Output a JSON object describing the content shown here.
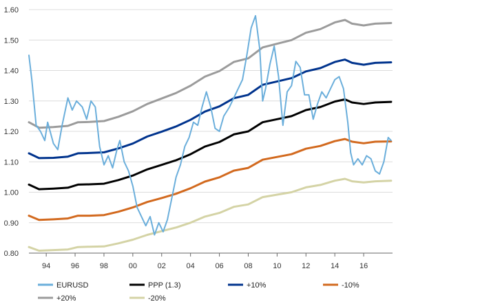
{
  "chart_data": {
    "type": "line",
    "title": "",
    "xlabel": "",
    "ylabel": "",
    "ylim": [
      0.8,
      1.6
    ],
    "yticks": [
      "1.60",
      "1.50",
      "1.40",
      "1.30",
      "1.20",
      "1.10",
      "1.00",
      "0.90",
      "0.80"
    ],
    "ytick_values": [
      1.6,
      1.5,
      1.4,
      1.3,
      1.2,
      1.1,
      1.0,
      0.9,
      0.8
    ],
    "xlim": [
      1992.8,
      2018.0
    ],
    "xticks": [
      "94",
      "96",
      "98",
      "00",
      "02",
      "04",
      "06",
      "08",
      "10",
      "12",
      "14",
      "16"
    ],
    "xtick_values": [
      1994,
      1996,
      1998,
      2000,
      2002,
      2004,
      2006,
      2008,
      2010,
      2012,
      2014,
      2016
    ],
    "grid": "horizontal",
    "legend_position": "bottom",
    "series": [
      {
        "name": "EURUSD",
        "color": "#6aaedb",
        "width": 2,
        "points": [
          [
            1992.8,
            1.45
          ],
          [
            1993.0,
            1.37
          ],
          [
            1993.3,
            1.22
          ],
          [
            1993.6,
            1.2
          ],
          [
            1993.9,
            1.17
          ],
          [
            1994.1,
            1.23
          ],
          [
            1994.5,
            1.16
          ],
          [
            1994.8,
            1.14
          ],
          [
            1995.1,
            1.22
          ],
          [
            1995.5,
            1.31
          ],
          [
            1995.8,
            1.27
          ],
          [
            1996.1,
            1.3
          ],
          [
            1996.5,
            1.28
          ],
          [
            1996.8,
            1.24
          ],
          [
            1997.1,
            1.3
          ],
          [
            1997.4,
            1.28
          ],
          [
            1997.7,
            1.15
          ],
          [
            1998.0,
            1.09
          ],
          [
            1998.3,
            1.12
          ],
          [
            1998.6,
            1.08
          ],
          [
            1998.9,
            1.14
          ],
          [
            1999.1,
            1.17
          ],
          [
            1999.4,
            1.1
          ],
          [
            1999.7,
            1.07
          ],
          [
            2000.0,
            1.02
          ],
          [
            2000.3,
            0.95
          ],
          [
            2000.6,
            0.92
          ],
          [
            2000.9,
            0.89
          ],
          [
            2001.2,
            0.92
          ],
          [
            2001.5,
            0.86
          ],
          [
            2001.8,
            0.9
          ],
          [
            2002.1,
            0.87
          ],
          [
            2002.4,
            0.91
          ],
          [
            2002.7,
            0.98
          ],
          [
            2003.0,
            1.05
          ],
          [
            2003.3,
            1.09
          ],
          [
            2003.6,
            1.15
          ],
          [
            2003.9,
            1.18
          ],
          [
            2004.2,
            1.23
          ],
          [
            2004.5,
            1.22
          ],
          [
            2004.8,
            1.28
          ],
          [
            2005.1,
            1.33
          ],
          [
            2005.4,
            1.28
          ],
          [
            2005.7,
            1.21
          ],
          [
            2006.0,
            1.2
          ],
          [
            2006.3,
            1.25
          ],
          [
            2006.7,
            1.28
          ],
          [
            2007.0,
            1.31
          ],
          [
            2007.3,
            1.34
          ],
          [
            2007.6,
            1.37
          ],
          [
            2007.9,
            1.45
          ],
          [
            2008.2,
            1.54
          ],
          [
            2008.5,
            1.58
          ],
          [
            2008.8,
            1.47
          ],
          [
            2009.0,
            1.3
          ],
          [
            2009.2,
            1.34
          ],
          [
            2009.5,
            1.42
          ],
          [
            2009.8,
            1.48
          ],
          [
            2010.1,
            1.38
          ],
          [
            2010.4,
            1.22
          ],
          [
            2010.7,
            1.33
          ],
          [
            2011.0,
            1.35
          ],
          [
            2011.3,
            1.43
          ],
          [
            2011.6,
            1.41
          ],
          [
            2011.9,
            1.32
          ],
          [
            2012.2,
            1.32
          ],
          [
            2012.5,
            1.24
          ],
          [
            2012.8,
            1.29
          ],
          [
            2013.1,
            1.33
          ],
          [
            2013.4,
            1.31
          ],
          [
            2013.7,
            1.34
          ],
          [
            2014.0,
            1.37
          ],
          [
            2014.3,
            1.38
          ],
          [
            2014.6,
            1.34
          ],
          [
            2014.9,
            1.23
          ],
          [
            2015.1,
            1.13
          ],
          [
            2015.3,
            1.09
          ],
          [
            2015.6,
            1.11
          ],
          [
            2015.9,
            1.09
          ],
          [
            2016.2,
            1.12
          ],
          [
            2016.5,
            1.11
          ],
          [
            2016.8,
            1.07
          ],
          [
            2017.1,
            1.06
          ],
          [
            2017.4,
            1.1
          ],
          [
            2017.7,
            1.18
          ],
          [
            2017.9,
            1.17
          ]
        ]
      },
      {
        "name": "PPP (1.3)",
        "color": "#000000",
        "width": 3,
        "points": [
          [
            1992.8,
            1.025
          ],
          [
            1993.5,
            1.01
          ],
          [
            1994.5,
            1.012
          ],
          [
            1995.5,
            1.015
          ],
          [
            1996.2,
            1.025
          ],
          [
            1997.0,
            1.026
          ],
          [
            1998.0,
            1.028
          ],
          [
            1999.0,
            1.04
          ],
          [
            2000.0,
            1.055
          ],
          [
            2001.0,
            1.075
          ],
          [
            2002.0,
            1.09
          ],
          [
            2003.0,
            1.105
          ],
          [
            2004.0,
            1.125
          ],
          [
            2005.0,
            1.15
          ],
          [
            2006.0,
            1.165
          ],
          [
            2007.0,
            1.19
          ],
          [
            2008.0,
            1.2
          ],
          [
            2009.0,
            1.23
          ],
          [
            2010.0,
            1.24
          ],
          [
            2011.0,
            1.25
          ],
          [
            2012.0,
            1.27
          ],
          [
            2013.0,
            1.28
          ],
          [
            2014.0,
            1.298
          ],
          [
            2014.7,
            1.305
          ],
          [
            2015.2,
            1.295
          ],
          [
            2016.0,
            1.29
          ],
          [
            2016.8,
            1.295
          ],
          [
            2017.9,
            1.297
          ]
        ]
      },
      {
        "name": "+10%",
        "color": "#00338d",
        "width": 3,
        "points": [
          [
            1992.8,
            1.128
          ],
          [
            1993.5,
            1.112
          ],
          [
            1994.5,
            1.113
          ],
          [
            1995.5,
            1.117
          ],
          [
            1996.2,
            1.128
          ],
          [
            1997.0,
            1.129
          ],
          [
            1998.0,
            1.131
          ],
          [
            1999.0,
            1.144
          ],
          [
            2000.0,
            1.16
          ],
          [
            2001.0,
            1.183
          ],
          [
            2002.0,
            1.199
          ],
          [
            2003.0,
            1.216
          ],
          [
            2004.0,
            1.238
          ],
          [
            2005.0,
            1.265
          ],
          [
            2006.0,
            1.282
          ],
          [
            2007.0,
            1.309
          ],
          [
            2008.0,
            1.32
          ],
          [
            2009.0,
            1.353
          ],
          [
            2010.0,
            1.364
          ],
          [
            2011.0,
            1.375
          ],
          [
            2012.0,
            1.397
          ],
          [
            2013.0,
            1.408
          ],
          [
            2014.0,
            1.428
          ],
          [
            2014.7,
            1.436
          ],
          [
            2015.2,
            1.425
          ],
          [
            2016.0,
            1.419
          ],
          [
            2016.8,
            1.425
          ],
          [
            2017.9,
            1.427
          ]
        ]
      },
      {
        "name": "-10%",
        "color": "#d2691e",
        "width": 3,
        "points": [
          [
            1992.8,
            0.923
          ],
          [
            1993.5,
            0.909
          ],
          [
            1994.5,
            0.911
          ],
          [
            1995.5,
            0.914
          ],
          [
            1996.2,
            0.923
          ],
          [
            1997.0,
            0.923
          ],
          [
            1998.0,
            0.925
          ],
          [
            1999.0,
            0.936
          ],
          [
            2000.0,
            0.95
          ],
          [
            2001.0,
            0.968
          ],
          [
            2002.0,
            0.981
          ],
          [
            2003.0,
            0.995
          ],
          [
            2004.0,
            1.013
          ],
          [
            2005.0,
            1.035
          ],
          [
            2006.0,
            1.049
          ],
          [
            2007.0,
            1.071
          ],
          [
            2008.0,
            1.08
          ],
          [
            2009.0,
            1.107
          ],
          [
            2010.0,
            1.116
          ],
          [
            2011.0,
            1.125
          ],
          [
            2012.0,
            1.143
          ],
          [
            2013.0,
            1.152
          ],
          [
            2014.0,
            1.168
          ],
          [
            2014.7,
            1.175
          ],
          [
            2015.2,
            1.166
          ],
          [
            2016.0,
            1.161
          ],
          [
            2016.8,
            1.166
          ],
          [
            2017.9,
            1.167
          ]
        ]
      },
      {
        "name": "+20%",
        "color": "#9b9b9b",
        "width": 3,
        "points": [
          [
            1992.8,
            1.23
          ],
          [
            1993.5,
            1.212
          ],
          [
            1994.5,
            1.214
          ],
          [
            1995.5,
            1.218
          ],
          [
            1996.2,
            1.23
          ],
          [
            1997.0,
            1.231
          ],
          [
            1998.0,
            1.234
          ],
          [
            1999.0,
            1.248
          ],
          [
            2000.0,
            1.266
          ],
          [
            2001.0,
            1.29
          ],
          [
            2002.0,
            1.308
          ],
          [
            2003.0,
            1.326
          ],
          [
            2004.0,
            1.35
          ],
          [
            2005.0,
            1.38
          ],
          [
            2006.0,
            1.398
          ],
          [
            2007.0,
            1.428
          ],
          [
            2008.0,
            1.44
          ],
          [
            2009.0,
            1.476
          ],
          [
            2010.0,
            1.488
          ],
          [
            2011.0,
            1.5
          ],
          [
            2012.0,
            1.524
          ],
          [
            2013.0,
            1.536
          ],
          [
            2014.0,
            1.558
          ],
          [
            2014.7,
            1.566
          ],
          [
            2015.2,
            1.554
          ],
          [
            2016.0,
            1.548
          ],
          [
            2016.8,
            1.554
          ],
          [
            2017.9,
            1.556
          ]
        ]
      },
      {
        "name": "-20%",
        "color": "#d4d3a5",
        "width": 3,
        "points": [
          [
            1992.8,
            0.82
          ],
          [
            1993.5,
            0.808
          ],
          [
            1994.5,
            0.81
          ],
          [
            1995.5,
            0.812
          ],
          [
            1996.2,
            0.82
          ],
          [
            1997.0,
            0.821
          ],
          [
            1998.0,
            0.822
          ],
          [
            1999.0,
            0.832
          ],
          [
            2000.0,
            0.844
          ],
          [
            2001.0,
            0.86
          ],
          [
            2002.0,
            0.872
          ],
          [
            2003.0,
            0.884
          ],
          [
            2004.0,
            0.9
          ],
          [
            2005.0,
            0.92
          ],
          [
            2006.0,
            0.932
          ],
          [
            2007.0,
            0.952
          ],
          [
            2008.0,
            0.96
          ],
          [
            2009.0,
            0.984
          ],
          [
            2010.0,
            0.992
          ],
          [
            2011.0,
            1.0
          ],
          [
            2012.0,
            1.016
          ],
          [
            2013.0,
            1.024
          ],
          [
            2014.0,
            1.038
          ],
          [
            2014.7,
            1.044
          ],
          [
            2015.2,
            1.036
          ],
          [
            2016.0,
            1.032
          ],
          [
            2016.8,
            1.036
          ],
          [
            2017.9,
            1.038
          ]
        ]
      }
    ]
  }
}
